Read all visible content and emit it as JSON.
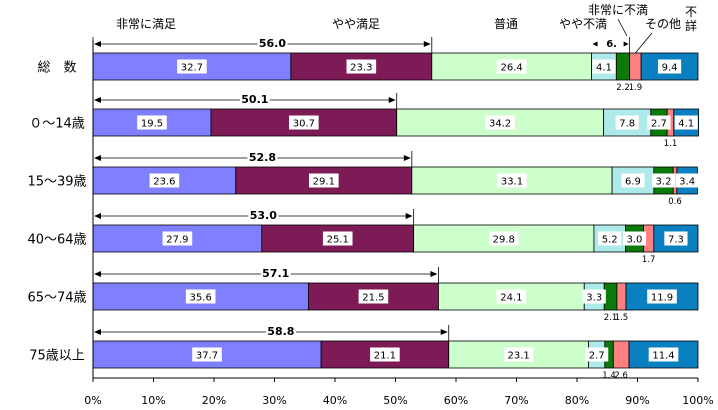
{
  "chart_data": {
    "type": "bar",
    "orientation": "horizontal",
    "stacked": true,
    "title": "",
    "xlabel": "",
    "ylabel": "",
    "xlim": [
      0,
      100
    ],
    "x_ticks": [
      "0%",
      "10%",
      "20%",
      "30%",
      "40%",
      "50%",
      "60%",
      "70%",
      "80%",
      "90%",
      "100%"
    ],
    "grid": false,
    "categories": [
      "総　数",
      "０～14歳",
      "15～39歳",
      "40～64歳",
      "65～74歳",
      "75歳以上"
    ],
    "series": [
      {
        "name": "非常に満足",
        "color": "#8080ff",
        "values": [
          32.7,
          19.5,
          23.6,
          27.9,
          35.6,
          37.7
        ]
      },
      {
        "name": "やや満足",
        "color": "#7d1b56",
        "values": [
          23.3,
          30.7,
          29.1,
          25.1,
          21.5,
          21.1
        ]
      },
      {
        "name": "普通",
        "color": "#ccffcc",
        "values": [
          26.4,
          34.2,
          33.1,
          29.8,
          24.1,
          23.1
        ]
      },
      {
        "name": "やや不満",
        "color": "#aeeaea",
        "values": [
          4.1,
          7.8,
          6.9,
          5.2,
          3.3,
          2.7
        ]
      },
      {
        "name": "非常に不満",
        "color": "#0a7a0a",
        "values": [
          2.2,
          2.7,
          3.2,
          3.0,
          2.1,
          1.4
        ]
      },
      {
        "name": "その他",
        "color": "#ff8080",
        "values": [
          1.9,
          1.1,
          0.6,
          1.7,
          1.5,
          2.6
        ]
      },
      {
        "name": "不詳",
        "color": "#0a80c0",
        "values": [
          9.4,
          4.1,
          3.4,
          7.3,
          11.9,
          11.4
        ]
      }
    ],
    "value_labels": [
      [
        "32.7",
        "23.3",
        "26.4",
        "4.1",
        "2.2",
        "1.9",
        "9.4"
      ],
      [
        "19.5",
        "30.7",
        "34.2",
        "7.8",
        "2.7",
        "1.1",
        "4.1"
      ],
      [
        "23.6",
        "29.1",
        "33.1",
        "6.9",
        "3.2",
        "0.6",
        "3.4"
      ],
      [
        "27.9",
        "25.1",
        "29.8",
        "5.2",
        "3.0",
        "1.7",
        "7.3"
      ],
      [
        "35.6",
        "21.5",
        "24.1",
        "3.3",
        "2.1",
        "1.5",
        "11.9"
      ],
      [
        "37.7",
        "21.1",
        "23.1",
        "2.7",
        "1.4",
        "2.6",
        "11.4"
      ]
    ],
    "satisfied_totals": [
      "56.0",
      "50.1",
      "52.8",
      "53.0",
      "57.1",
      "58.8"
    ],
    "annotation_first_row_dissatisfied": "6.",
    "legend_placement": "top (labels above first bar)"
  }
}
